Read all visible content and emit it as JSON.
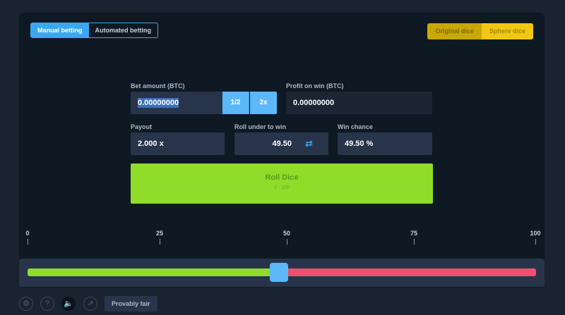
{
  "modes": {
    "tabs": [
      {
        "label": "Manual betting",
        "active": true
      },
      {
        "label": "Automated betting",
        "active": false
      }
    ]
  },
  "games": {
    "tabs": [
      {
        "label": "Original dice",
        "active": false
      },
      {
        "label": "Sphere dice",
        "active": true
      }
    ]
  },
  "bet": {
    "label": "Bet amount (BTC)",
    "value": "0.00000000",
    "half_label": "1/2",
    "double_label": "2x"
  },
  "profit": {
    "label": "Profit on win (BTC)",
    "value": "0.00000000"
  },
  "payout": {
    "label": "Payout",
    "value": "2.000 x"
  },
  "roll_under": {
    "label": "Roll under to win",
    "value": "49.50",
    "swap_icon": "swap-arrows-icon"
  },
  "win_chance": {
    "label": "Win chance",
    "value": "49.50 %"
  },
  "roll_button": {
    "label": "Roll Dice",
    "range": "0 - 100"
  },
  "slider": {
    "ticks": [
      "0",
      "25",
      "50",
      "75",
      "100"
    ],
    "value": 49.5,
    "min": 0,
    "max": 100,
    "colors": {
      "win": "#8fdc29",
      "lose": "#f0506e",
      "thumb": "#5cb8f8"
    }
  },
  "footer": {
    "icons": [
      "gear-icon",
      "help-icon",
      "sound-icon",
      "stats-icon"
    ],
    "fair_label": "Provably fair"
  },
  "colors": {
    "accent": "#3aa8f0",
    "roll": "#8fdc29",
    "gold": "#f2c70f"
  }
}
